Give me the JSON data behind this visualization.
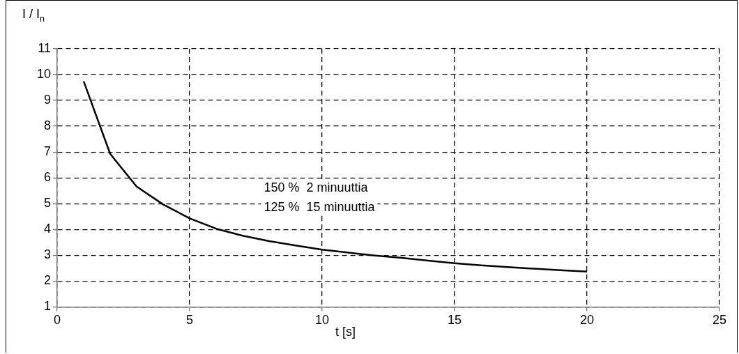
{
  "chart_data": {
    "type": "line",
    "ylabel": "I / I$_{n}$",
    "xlabel": "t [s]",
    "annotations": [
      "150 %  2 minuuttia",
      "125 %  15 minuuttia"
    ],
    "x": [
      1,
      2,
      3,
      4,
      5,
      6,
      7,
      8,
      9,
      10,
      11,
      12,
      13,
      14,
      15,
      16,
      17,
      18,
      19,
      20
    ],
    "values": [
      9.74,
      6.93,
      5.66,
      4.97,
      4.43,
      4.03,
      3.76,
      3.55,
      3.38,
      3.22,
      3.1,
      2.99,
      2.9,
      2.79,
      2.69,
      2.61,
      2.54,
      2.48,
      2.42,
      2.37
    ],
    "color": "#000000",
    "xlim": [
      0,
      25
    ],
    "xticks": [
      0,
      5,
      10,
      15,
      20,
      25
    ],
    "ylim": [
      1,
      11
    ],
    "yticks": [
      1,
      2,
      3,
      4,
      5,
      6,
      7,
      8,
      9,
      10,
      11
    ],
    "grid": true,
    "legend": false,
    "marker": "none",
    "line_style": "solid"
  }
}
